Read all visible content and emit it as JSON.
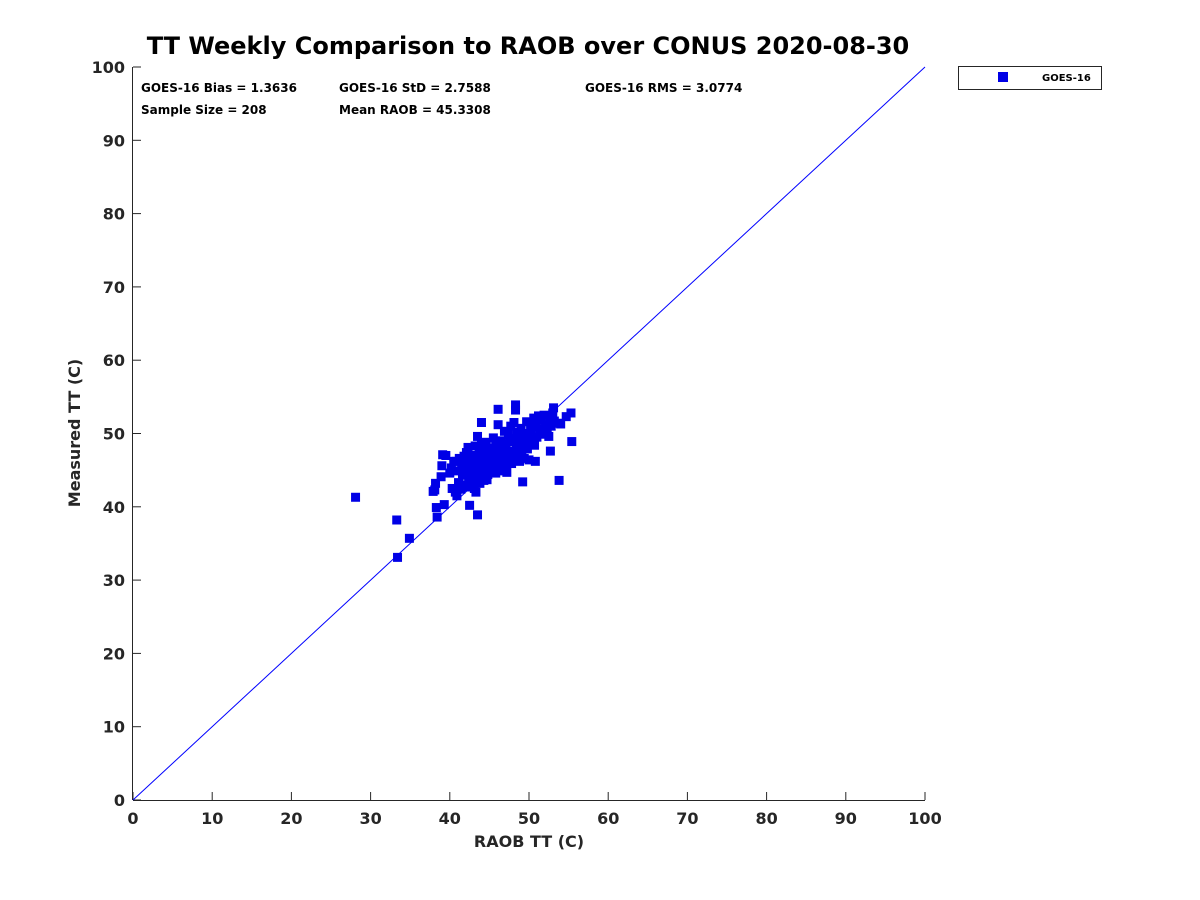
{
  "chart_data": {
    "type": "scatter",
    "title": "TT Weekly Comparison to RAOB over CONUS 2020-08-30",
    "xlabel": "RAOB TT (C)",
    "ylabel": "Measured TT (C)",
    "xlim": [
      0,
      100
    ],
    "ylim": [
      0,
      100
    ],
    "xticks": [
      0,
      10,
      20,
      30,
      40,
      50,
      60,
      70,
      80,
      90,
      100
    ],
    "yticks": [
      0,
      10,
      20,
      30,
      40,
      50,
      60,
      70,
      80,
      90,
      100
    ],
    "grid": false,
    "legend_position": "outside-top-right",
    "reference_line": {
      "from": [
        0,
        0
      ],
      "to": [
        100,
        100
      ],
      "color": "#0000ff"
    },
    "stats": {
      "bias": "GOES-16 Bias = 1.3636",
      "std": "GOES-16 StD = 2.7588",
      "rms": "GOES-16 RMS = 3.0774",
      "sample_size": "Sample Size = 208",
      "mean_raob": "Mean RAOB = 45.3308"
    },
    "series": [
      {
        "name": "GOES-16",
        "color": "#0000e6",
        "marker": "square",
        "points": [
          [
            28.1,
            41.3
          ],
          [
            33.3,
            38.2
          ],
          [
            33.4,
            33.1
          ],
          [
            34.9,
            35.7
          ],
          [
            37.9,
            42.1
          ],
          [
            38.1,
            42.3
          ],
          [
            38.2,
            43.2
          ],
          [
            38.3,
            39.9
          ],
          [
            38.4,
            38.6
          ],
          [
            38.9,
            44.1
          ],
          [
            39.0,
            45.6
          ],
          [
            39.1,
            47.1
          ],
          [
            39.3,
            40.3
          ],
          [
            39.5,
            47.0
          ],
          [
            40.0,
            44.6
          ],
          [
            40.2,
            45.3
          ],
          [
            40.3,
            42.5
          ],
          [
            40.5,
            46.2
          ],
          [
            40.7,
            42.0
          ],
          [
            40.9,
            41.5
          ],
          [
            41.0,
            44.9
          ],
          [
            41.1,
            43.3
          ],
          [
            41.2,
            46.6
          ],
          [
            41.4,
            42.4
          ],
          [
            41.5,
            45.8
          ],
          [
            41.6,
            44.3
          ],
          [
            41.8,
            46.9
          ],
          [
            41.9,
            43.0
          ],
          [
            42.0,
            45.2
          ],
          [
            42.1,
            47.4
          ],
          [
            42.2,
            42.7
          ],
          [
            42.3,
            48.1
          ],
          [
            42.4,
            44.0
          ],
          [
            42.5,
            46.3
          ],
          [
            42.5,
            40.2
          ],
          [
            42.6,
            45.5
          ],
          [
            42.7,
            43.6
          ],
          [
            42.8,
            47.0
          ],
          [
            42.9,
            44.8
          ],
          [
            43.0,
            46.0
          ],
          [
            43.1,
            42.5
          ],
          [
            43.2,
            48.3
          ],
          [
            43.3,
            45.1
          ],
          [
            43.3,
            42.0
          ],
          [
            43.4,
            46.7
          ],
          [
            43.5,
            49.6
          ],
          [
            43.5,
            38.9
          ],
          [
            43.6,
            44.5
          ],
          [
            43.7,
            47.5
          ],
          [
            43.8,
            43.2
          ],
          [
            43.9,
            45.8
          ],
          [
            44.0,
            48.5
          ],
          [
            44.0,
            51.5
          ],
          [
            44.1,
            44.2
          ],
          [
            44.2,
            46.4
          ],
          [
            44.3,
            43.6
          ],
          [
            44.4,
            47.9
          ],
          [
            44.5,
            45.0
          ],
          [
            44.6,
            48.8
          ],
          [
            44.7,
            46.1
          ],
          [
            44.8,
            44.4
          ],
          [
            44.9,
            47.2
          ],
          [
            45.0,
            45.6
          ],
          [
            45.1,
            46.8
          ],
          [
            45.2,
            44.9
          ],
          [
            45.3,
            48.0
          ],
          [
            45.4,
            46.3
          ],
          [
            45.5,
            49.4
          ],
          [
            45.6,
            45.3
          ],
          [
            45.7,
            47.6
          ],
          [
            45.8,
            44.6
          ],
          [
            45.9,
            46.9
          ],
          [
            46.0,
            48.4
          ],
          [
            46.1,
            51.2
          ],
          [
            46.1,
            53.3
          ],
          [
            46.2,
            45.8
          ],
          [
            46.3,
            47.3
          ],
          [
            46.4,
            49.0
          ],
          [
            46.5,
            46.5
          ],
          [
            46.6,
            48.2
          ],
          [
            46.7,
            45.2
          ],
          [
            46.8,
            47.8
          ],
          [
            46.9,
            50.3
          ],
          [
            47.0,
            46.1
          ],
          [
            47.1,
            48.6
          ],
          [
            47.2,
            44.7
          ],
          [
            47.3,
            47.0
          ],
          [
            47.4,
            49.8
          ],
          [
            47.5,
            46.7
          ],
          [
            47.6,
            48.9
          ],
          [
            47.7,
            51.0
          ],
          [
            47.8,
            45.9
          ],
          [
            47.9,
            47.5
          ],
          [
            48.0,
            49.3
          ],
          [
            48.1,
            51.5
          ],
          [
            48.2,
            46.3
          ],
          [
            48.3,
            53.2
          ],
          [
            48.3,
            53.9
          ],
          [
            48.4,
            48.1
          ],
          [
            48.5,
            50.2
          ],
          [
            48.6,
            47.1
          ],
          [
            48.7,
            49.5
          ],
          [
            48.8,
            46.2
          ],
          [
            48.9,
            48.6
          ],
          [
            49.0,
            50.7
          ],
          [
            49.1,
            47.4
          ],
          [
            49.2,
            43.4
          ],
          [
            49.3,
            49.1
          ],
          [
            49.4,
            46.6
          ],
          [
            49.5,
            48.3
          ],
          [
            49.6,
            50.0
          ],
          [
            49.7,
            51.6
          ],
          [
            49.8,
            47.9
          ],
          [
            49.9,
            49.6
          ],
          [
            50.0,
            46.4
          ],
          [
            50.1,
            48.9
          ],
          [
            50.2,
            51.1
          ],
          [
            50.3,
            50.3
          ],
          [
            50.5,
            49.0
          ],
          [
            50.6,
            52.1
          ],
          [
            50.7,
            48.4
          ],
          [
            50.8,
            46.2
          ],
          [
            50.9,
            50.9
          ],
          [
            51.0,
            49.5
          ],
          [
            51.2,
            52.4
          ],
          [
            51.4,
            50.6
          ],
          [
            51.5,
            51.8
          ],
          [
            51.7,
            49.9
          ],
          [
            51.9,
            52.5
          ],
          [
            52.1,
            51.2
          ],
          [
            52.3,
            50.5
          ],
          [
            52.5,
            49.6
          ],
          [
            52.6,
            52.2
          ],
          [
            52.7,
            47.6
          ],
          [
            52.8,
            51.0
          ],
          [
            53.0,
            52.8
          ],
          [
            53.1,
            53.5
          ],
          [
            53.2,
            51.7
          ],
          [
            53.6,
            51.4
          ],
          [
            53.8,
            43.6
          ],
          [
            54.0,
            51.3
          ],
          [
            54.7,
            52.3
          ],
          [
            55.3,
            52.8
          ],
          [
            55.4,
            48.9
          ],
          [
            44.2,
            45.1
          ],
          [
            45.0,
            47.2
          ],
          [
            43.8,
            46.0
          ],
          [
            46.6,
            44.9
          ],
          [
            47.2,
            46.0
          ],
          [
            42.9,
            45.9
          ],
          [
            44.7,
            43.7
          ],
          [
            45.8,
            48.9
          ],
          [
            46.3,
            46.4
          ],
          [
            43.0,
            44.4
          ],
          [
            41.7,
            45.1
          ],
          [
            40.8,
            46.2
          ],
          [
            44.1,
            47.0
          ],
          [
            46.9,
            45.5
          ],
          [
            48.1,
            47.6
          ]
        ]
      }
    ]
  }
}
